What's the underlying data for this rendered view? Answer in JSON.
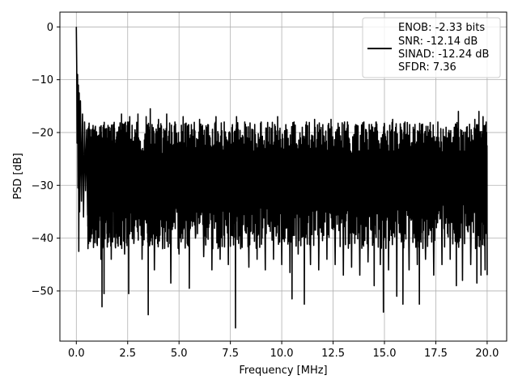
{
  "chart_data": {
    "type": "line",
    "title": "",
    "xlabel": "Frequency [MHz]",
    "ylabel": "PSD [dB]",
    "xlim": [
      -0.8,
      20.95
    ],
    "ylim": [
      -59.5,
      2.8
    ],
    "xticks": [
      0.0,
      2.5,
      5.0,
      7.5,
      10.0,
      12.5,
      15.0,
      17.5,
      20.0
    ],
    "xtick_labels": [
      "0.0",
      "2.5",
      "5.0",
      "7.5",
      "10.0",
      "12.5",
      "15.0",
      "17.5",
      "20.0"
    ],
    "yticks": [
      0,
      -10,
      -20,
      -30,
      -40,
      -50
    ],
    "ytick_labels": [
      "0",
      "−10",
      "−20",
      "−30",
      "−40",
      "−50"
    ],
    "grid": true,
    "legend_position": "top-right",
    "legend": {
      "lines": [
        "ENOB: -2.33 bits",
        "SNR: -12.14 dB",
        "SINAD: -12.24 dB",
        "SFDR: 7.36"
      ]
    },
    "series": [
      {
        "color": "#000000",
        "points": [
          [
            0.0,
            0.0
          ],
          [
            0.02,
            -7.5
          ],
          [
            0.04,
            -22.0
          ],
          [
            0.06,
            -9.0
          ],
          [
            0.08,
            -30.5
          ],
          [
            0.1,
            -11.0
          ],
          [
            0.12,
            -42.5
          ],
          [
            0.14,
            -12.5
          ],
          [
            0.16,
            -35.0
          ],
          [
            0.2,
            -14.0
          ],
          [
            0.25,
            -33.0
          ],
          [
            0.3,
            -16.5
          ],
          [
            0.35,
            -36.0
          ],
          [
            0.4,
            -18.0
          ],
          [
            0.45,
            -31.0
          ],
          [
            0.5,
            -19.5
          ],
          [
            0.55,
            -35.5
          ],
          [
            0.6,
            -20.0
          ],
          [
            0.65,
            -30.0
          ],
          [
            0.7,
            -21.0
          ],
          [
            0.8,
            -36.0
          ],
          [
            0.9,
            -19.5
          ],
          [
            1.0,
            -41.0
          ],
          [
            1.1,
            -20.5
          ],
          [
            1.2,
            -44.0
          ],
          [
            1.25,
            -53.0
          ],
          [
            1.3,
            -19.0
          ],
          [
            1.35,
            -50.5
          ],
          [
            1.4,
            -21.0
          ],
          [
            1.5,
            -36.0
          ],
          [
            1.6,
            -19.0
          ],
          [
            1.7,
            -44.0
          ],
          [
            1.8,
            -18.5
          ],
          [
            1.9,
            -41.5
          ],
          [
            2.0,
            -20.0
          ],
          [
            2.1,
            -38.0
          ],
          [
            2.2,
            -16.5
          ],
          [
            2.35,
            -43.0
          ],
          [
            2.5,
            -18.0
          ],
          [
            2.55,
            -50.5
          ],
          [
            2.6,
            -17.0
          ],
          [
            2.8,
            -41.0
          ],
          [
            3.0,
            -16.5
          ],
          [
            3.2,
            -44.0
          ],
          [
            3.4,
            -17.0
          ],
          [
            3.5,
            -54.5
          ],
          [
            3.6,
            -15.5
          ],
          [
            3.8,
            -46.0
          ],
          [
            4.0,
            -17.5
          ],
          [
            4.2,
            -42.0
          ],
          [
            4.4,
            -16.5
          ],
          [
            4.6,
            -48.5
          ],
          [
            4.8,
            -18.0
          ],
          [
            5.0,
            -43.0
          ],
          [
            5.2,
            -17.0
          ],
          [
            5.4,
            -41.0
          ],
          [
            5.5,
            -49.5
          ],
          [
            5.6,
            -18.5
          ],
          [
            5.8,
            -40.0
          ],
          [
            6.0,
            -17.5
          ],
          [
            6.2,
            -43.5
          ],
          [
            6.4,
            -18.5
          ],
          [
            6.6,
            -46.0
          ],
          [
            6.8,
            -17.0
          ],
          [
            7.0,
            -44.0
          ],
          [
            7.2,
            -18.0
          ],
          [
            7.4,
            -45.0
          ],
          [
            7.6,
            -18.5
          ],
          [
            7.75,
            -57.0
          ],
          [
            7.8,
            -17.0
          ],
          [
            8.0,
            -42.0
          ],
          [
            8.2,
            -18.0
          ],
          [
            8.4,
            -45.5
          ],
          [
            8.6,
            -19.5
          ],
          [
            8.8,
            -44.0
          ],
          [
            9.0,
            -18.0
          ],
          [
            9.2,
            -46.0
          ],
          [
            9.4,
            -19.0
          ],
          [
            9.6,
            -44.0
          ],
          [
            9.8,
            -17.0
          ],
          [
            10.0,
            -45.0
          ],
          [
            10.2,
            -18.5
          ],
          [
            10.4,
            -46.5
          ],
          [
            10.5,
            -51.5
          ],
          [
            10.6,
            -18.0
          ],
          [
            10.8,
            -43.0
          ],
          [
            11.0,
            -19.0
          ],
          [
            11.1,
            -52.5
          ],
          [
            11.2,
            -18.0
          ],
          [
            11.4,
            -45.0
          ],
          [
            11.6,
            -17.5
          ],
          [
            11.8,
            -46.0
          ],
          [
            12.0,
            -18.5
          ],
          [
            12.2,
            -44.0
          ],
          [
            12.4,
            -17.5
          ],
          [
            12.6,
            -45.0
          ],
          [
            12.8,
            -19.0
          ],
          [
            13.0,
            -47.0
          ],
          [
            13.2,
            -18.0
          ],
          [
            13.4,
            -45.5
          ],
          [
            13.6,
            -18.5
          ],
          [
            13.8,
            -47.0
          ],
          [
            14.0,
            -18.0
          ],
          [
            14.2,
            -44.5
          ],
          [
            14.4,
            -19.0
          ],
          [
            14.5,
            -49.0
          ],
          [
            14.6,
            -18.0
          ],
          [
            14.8,
            -45.0
          ],
          [
            14.95,
            -54.0
          ],
          [
            15.0,
            -18.5
          ],
          [
            15.2,
            -46.0
          ],
          [
            15.4,
            -17.5
          ],
          [
            15.6,
            -51.0
          ],
          [
            15.8,
            -19.0
          ],
          [
            15.9,
            -52.5
          ],
          [
            16.0,
            -18.0
          ],
          [
            16.2,
            -46.0
          ],
          [
            16.4,
            -19.0
          ],
          [
            16.6,
            -45.0
          ],
          [
            16.7,
            -52.5
          ],
          [
            16.8,
            -18.5
          ],
          [
            17.0,
            -44.0
          ],
          [
            17.2,
            -19.5
          ],
          [
            17.4,
            -47.0
          ],
          [
            17.6,
            -18.0
          ],
          [
            17.8,
            -45.0
          ],
          [
            18.0,
            -19.0
          ],
          [
            18.2,
            -44.0
          ],
          [
            18.4,
            -19.0
          ],
          [
            18.5,
            -49.0
          ],
          [
            18.6,
            -16.0
          ],
          [
            18.8,
            -48.0
          ],
          [
            19.0,
            -19.0
          ],
          [
            19.2,
            -45.0
          ],
          [
            19.4,
            -17.5
          ],
          [
            19.5,
            -48.5
          ],
          [
            19.6,
            -16.0
          ],
          [
            19.7,
            -47.0
          ],
          [
            19.8,
            -17.0
          ],
          [
            19.9,
            -46.0
          ],
          [
            19.95,
            -18.0
          ],
          [
            20.0,
            -47.0
          ]
        ]
      }
    ]
  }
}
